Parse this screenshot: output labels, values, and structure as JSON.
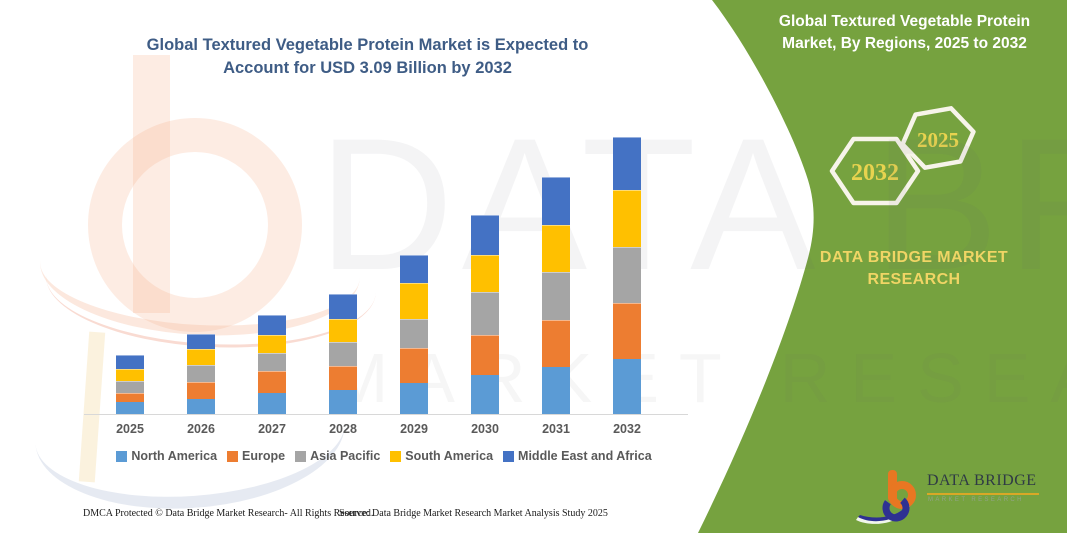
{
  "header": {
    "title_line1": "Global Textured Vegetable Protein Market is Expected to",
    "title_line2": "Account for USD 3.09 Billion by 2032"
  },
  "side_panel": {
    "title_line1": "Global Textured Vegetable Protein",
    "title_line2": "Market, By Regions, 2025 to 2032",
    "hexagon_left_year": "2032",
    "hexagon_right_year": "2025",
    "brand_line1": "DATA BRIDGE MARKET",
    "brand_line2": "RESEARCH",
    "bg_color": "#76A23F",
    "accent_text_color": "#E8D34F"
  },
  "logo": {
    "name_text": "DATA BRIDGE",
    "tagline": "MARKET RESEARCH",
    "orange": "#E87722",
    "blue": "#2E3192",
    "underline_color": "#D9A826"
  },
  "watermark": {
    "row1": "DATA BRIDGE",
    "row2": "MARKET RESEARCH"
  },
  "footer": {
    "left": "DMCA Protected © Data Bridge Market Research-  All Rights Reserved.",
    "right": "Source: Data Bridge Market Research  Market Analysis Study 2025"
  },
  "chart_data": {
    "type": "bar",
    "stacked": true,
    "title": "Global Textured Vegetable Protein Market is Expected to Account for USD 3.09 Billion by 2032",
    "unit": "USD Billion",
    "xlabel": "",
    "ylabel": "",
    "y_axis_visible": false,
    "grid": false,
    "legend_position": "bottom",
    "ylim": [
      0,
      3.2
    ],
    "categories": [
      "2025",
      "2026",
      "2027",
      "2028",
      "2029",
      "2030",
      "2031",
      "2032"
    ],
    "series": [
      {
        "name": "North America",
        "color": "#5B9BD5",
        "values": [
          0.13,
          0.17,
          0.24,
          0.27,
          0.35,
          0.44,
          0.52,
          0.61
        ]
      },
      {
        "name": "Europe",
        "color": "#ED7D31",
        "values": [
          0.11,
          0.19,
          0.24,
          0.27,
          0.39,
          0.44,
          0.53,
          0.63
        ]
      },
      {
        "name": "Asia Pacific",
        "color": "#A5A5A5",
        "values": [
          0.13,
          0.19,
          0.2,
          0.26,
          0.32,
          0.48,
          0.53,
          0.63
        ]
      },
      {
        "name": "South America",
        "color": "#FFC000",
        "values": [
          0.13,
          0.18,
          0.2,
          0.26,
          0.4,
          0.42,
          0.53,
          0.63
        ]
      },
      {
        "name": "Middle East and Africa",
        "color": "#4472C4",
        "values": [
          0.16,
          0.17,
          0.23,
          0.28,
          0.31,
          0.44,
          0.54,
          0.59
        ]
      }
    ],
    "totals": [
      0.66,
      0.9,
      1.11,
      1.34,
      1.77,
      2.22,
      2.65,
      3.09
    ],
    "final_year_total_label": "USD 3.09 Billion by 2032"
  }
}
